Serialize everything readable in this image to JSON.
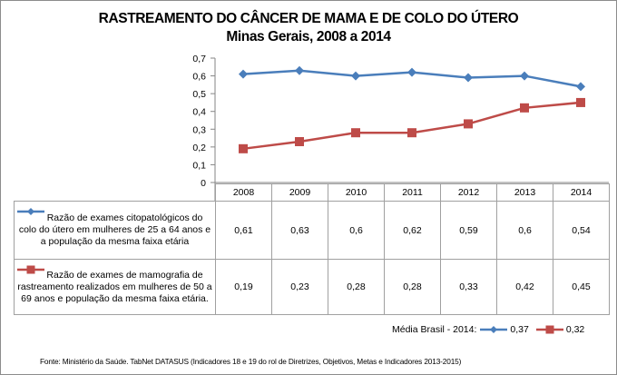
{
  "chart_data": {
    "type": "line",
    "title": "RASTREAMENTO DO CÂNCER DE MAMA E DE COLO DO ÚTERO",
    "subtitle": "Minas Gerais, 2008 a 2014",
    "xlabel": "",
    "ylabel": "",
    "categories": [
      "2008",
      "2009",
      "2010",
      "2011",
      "2012",
      "2013",
      "2014"
    ],
    "ylim": [
      0,
      0.7
    ],
    "yticks": [
      "0",
      "0,1",
      "0,2",
      "0,3",
      "0,4",
      "0,5",
      "0,6",
      "0,7"
    ],
    "grid": false,
    "legend_placement": "data-table",
    "series": [
      {
        "name": "Razão de exames citopatológicos do colo do útero em mulheres de 25 a 64 anos e a população da mesma faixa etária",
        "color": "#4a7ebb",
        "marker": "diamond",
        "values": [
          0.61,
          0.63,
          0.6,
          0.62,
          0.59,
          0.6,
          0.54
        ],
        "labels": [
          "0,61",
          "0,63",
          "0,6",
          "0,62",
          "0,59",
          "0,6",
          "0,54"
        ]
      },
      {
        "name": "Razão de exames de mamografia de rastreamento realizados em mulheres de 50 a 69 anos e população da mesma faixa etária.",
        "color": "#be4b48",
        "marker": "square",
        "values": [
          0.19,
          0.23,
          0.28,
          0.28,
          0.33,
          0.42,
          0.45
        ],
        "labels": [
          "0,19",
          "0,23",
          "0,28",
          "0,28",
          "0,33",
          "0,42",
          "0,45"
        ]
      }
    ]
  },
  "brasil": {
    "label": "Média Brasil - 2014:",
    "series1_value": "0,37",
    "series2_value": "0,32"
  },
  "source": "Fonte: Ministério da Saúde. TabNet DATASUS (Indicadores 18 e 19 do rol de Diretrizes, Objetivos, Metas e Indicadores 2013-2015)"
}
